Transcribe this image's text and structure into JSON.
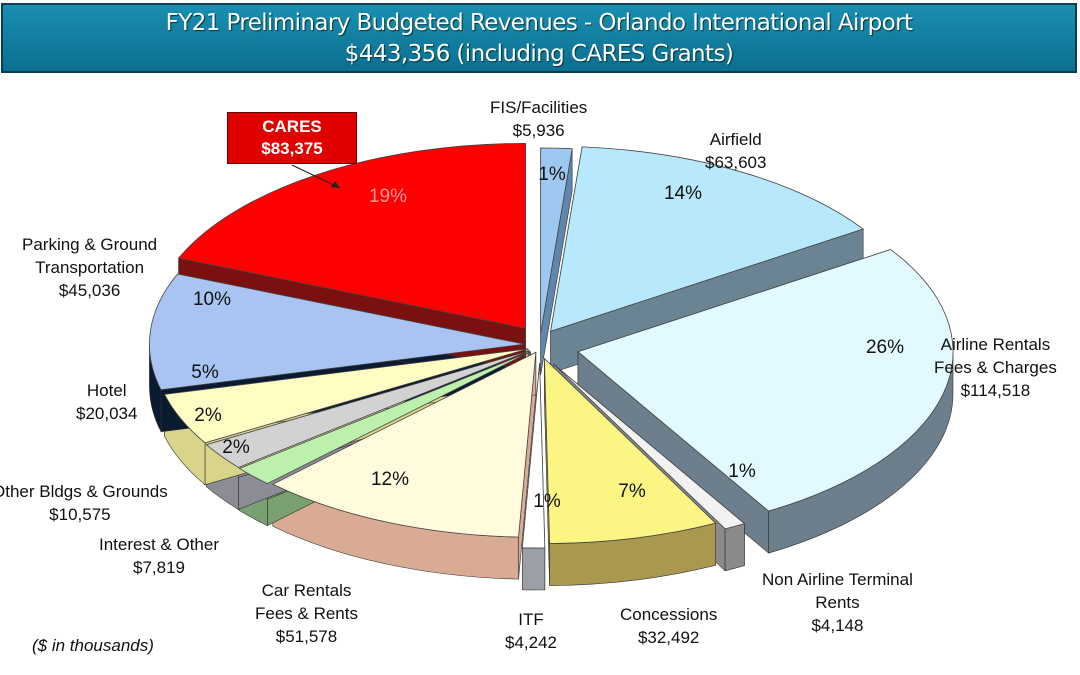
{
  "chart_data": {
    "type": "pie",
    "title": "FY21 Preliminary Budgeted Revenues - Orlando International Airport",
    "subtitle": "$443,356 (including CARES Grants)",
    "note": "($ in thousands)",
    "slices": [
      {
        "name": "FIS/Facilities",
        "value": "$5,936",
        "amount": 5936,
        "percent": "1%",
        "color": "#9ec8f0",
        "side": "#5f86ad"
      },
      {
        "name": "Airfield",
        "value": "$63,603",
        "amount": 63603,
        "percent": "14%",
        "color": "#b8e8fb",
        "side": "#6a8493"
      },
      {
        "name": "Airline Rentals Fees & Charges",
        "value": "$114,518",
        "amount": 114518,
        "percent": "26%",
        "color": "#e2f9ff",
        "side": "#6d7f8c"
      },
      {
        "name": "Non Airline Terminal Rents",
        "value": "$4,148",
        "amount": 4148,
        "percent": "1%",
        "color": "#f2f2f2",
        "side": "#8a8a8a"
      },
      {
        "name": "Concessions",
        "value": "$32,492",
        "amount": 32492,
        "percent": "7%",
        "color": "#fbf584",
        "side": "#a8994e"
      },
      {
        "name": "ITF",
        "value": "$4,242",
        "amount": 4242,
        "percent": "1%",
        "color": "#ffffff",
        "side": "#9aa0a6"
      },
      {
        "name": "Car Rentals Fees & Rents",
        "value": "$51,578",
        "amount": 51578,
        "percent": "12%",
        "color": "#fffbdc",
        "side": "#d9ab95"
      },
      {
        "name": "Interest & Other",
        "value": "$7,819",
        "amount": 7819,
        "percent": "2%",
        "color": "#bdf0ac",
        "side": "#78a070"
      },
      {
        "name": "Other Bldgs & Grounds",
        "value": "$10,575",
        "amount": 10575,
        "percent": "2%",
        "color": "#d2d2d2",
        "side": "#8c8c95"
      },
      {
        "name": "Hotel",
        "value": "$20,034",
        "amount": 20034,
        "percent": "5%",
        "color": "#fffcc4",
        "side": "#d8d48a"
      },
      {
        "name": "Parking & Ground Transportation",
        "value": "$45,036",
        "amount": 45036,
        "percent": "10%",
        "color": "#a9c4f2",
        "side": "#0a1a30"
      },
      {
        "name": "CARES",
        "value": "$83,375",
        "amount": 83375,
        "percent": "19%",
        "color": "#ff0000",
        "side": "#7a1010"
      }
    ]
  },
  "labels": {
    "fis": [
      "FIS/Facilities",
      "$5,936"
    ],
    "airfield": [
      "Airfield",
      "$63,603"
    ],
    "airline": [
      "Airline Rentals",
      "Fees & Charges",
      "$114,518"
    ],
    "nonairline": [
      "Non Airline Terminal",
      "Rents",
      "$4,148"
    ],
    "concessions": [
      "Concessions",
      "$32,492"
    ],
    "itf": [
      "ITF",
      "$4,242"
    ],
    "car": [
      "Car Rentals",
      "Fees & Rents",
      "$51,578"
    ],
    "interest": [
      "Interest & Other",
      "$7,819"
    ],
    "other": [
      "Other Bldgs & Grounds",
      "$10,575"
    ],
    "hotel": [
      "Hotel",
      "$20,034"
    ],
    "parking": [
      "Parking & Ground",
      "Transportation",
      "$45,036"
    ],
    "cares": [
      "CARES",
      "$83,375"
    ]
  }
}
